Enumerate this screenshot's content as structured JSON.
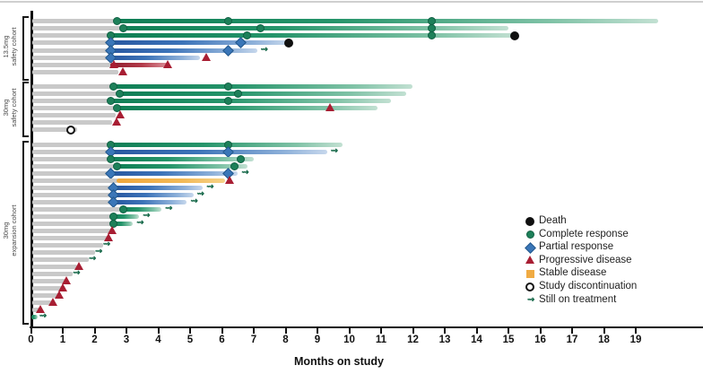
{
  "axis": {
    "label": "Months on study"
  },
  "chart_data": {
    "type": "swimmer",
    "title": "",
    "xlabel": "Months on study",
    "xlim": [
      0,
      19.9
    ],
    "x_ticks": [
      0,
      1,
      2,
      3,
      4,
      5,
      6,
      7,
      8,
      9,
      10,
      11,
      12,
      13,
      14,
      15,
      16,
      17,
      18,
      19
    ],
    "grid": false,
    "legend_position": "right-bottom",
    "legend": [
      {
        "marker": "death",
        "label": "Death"
      },
      {
        "marker": "cr",
        "label": "Complete response"
      },
      {
        "marker": "pr",
        "label": "Partial response"
      },
      {
        "marker": "pd",
        "label": "Progressive disease"
      },
      {
        "marker": "sd",
        "label": "Stable disease"
      },
      {
        "marker": "disc",
        "label": "Study discontinuation"
      },
      {
        "marker": "arrow",
        "label": "Still on treatment"
      }
    ],
    "colors": {
      "green": "#1f8f66",
      "blue": "#3a76b8",
      "red": "#a81e33",
      "orange": "#f0ab43",
      "gray": "#c9c9c9",
      "death": "#101010",
      "marker_green": "#1d8059"
    },
    "cohorts": [
      {
        "name": "13.5mg safety cohort",
        "label_lines": [
          "13.5mg",
          "safety cohort"
        ],
        "patients": [
          {
            "lead": 2.7,
            "bar": {
              "color": "green",
              "start": 2.7,
              "end": 19.7
            },
            "markers": [
              [
                "cr",
                2.7
              ],
              [
                "cr",
                6.2
              ],
              [
                "cr",
                12.6
              ]
            ]
          },
          {
            "lead": 2.9,
            "bar": {
              "color": "green",
              "start": 2.9,
              "end": 15.0
            },
            "markers": [
              [
                "cr",
                2.9
              ],
              [
                "cr",
                7.2
              ],
              [
                "cr",
                12.6
              ]
            ]
          },
          {
            "lead": 2.5,
            "bar": {
              "color": "green",
              "start": 2.5,
              "end": 15.2
            },
            "markers": [
              [
                "cr",
                2.5
              ],
              [
                "cr",
                6.8
              ],
              [
                "cr",
                12.6
              ],
              [
                "death",
                15.2
              ]
            ]
          },
          {
            "lead": 2.5,
            "bar": {
              "color": "blue",
              "start": 2.5,
              "end": 8.1
            },
            "markers": [
              [
                "pr",
                2.5
              ],
              [
                "pr",
                6.6
              ],
              [
                "death",
                8.1
              ]
            ]
          },
          {
            "lead": 2.5,
            "bar": {
              "color": "blue",
              "start": 2.5,
              "end": 7.1
            },
            "markers": [
              [
                "pr",
                2.5
              ],
              [
                "pr",
                6.2
              ],
              [
                "arrow",
                7.3
              ]
            ]
          },
          {
            "lead": 2.5,
            "bar": {
              "color": "blue",
              "start": 2.5,
              "end": 5.3
            },
            "markers": [
              [
                "pr",
                2.5
              ],
              [
                "pd",
                5.5
              ]
            ]
          },
          {
            "lead": 2.5,
            "bar": {
              "color": "red",
              "start": 2.5,
              "end": 4.3
            },
            "markers": [
              [
                "pd",
                2.6
              ],
              [
                "pd",
                4.3
              ]
            ]
          },
          {
            "lead": 2.7,
            "bar": null,
            "markers": [
              [
                "pd",
                2.9
              ]
            ]
          }
        ]
      },
      {
        "name": "30mg safety cohort",
        "label_lines": [
          "30mg",
          "safety cohort"
        ],
        "patients": [
          {
            "lead": 2.6,
            "bar": {
              "color": "green",
              "start": 2.6,
              "end": 12.0
            },
            "markers": [
              [
                "cr",
                2.6
              ],
              [
                "cr",
                6.2
              ]
            ]
          },
          {
            "lead": 2.8,
            "bar": {
              "color": "green",
              "start": 2.8,
              "end": 11.8
            },
            "markers": [
              [
                "cr",
                2.8
              ],
              [
                "cr",
                6.5
              ]
            ]
          },
          {
            "lead": 2.5,
            "bar": {
              "color": "green",
              "start": 2.5,
              "end": 11.3
            },
            "markers": [
              [
                "cr",
                2.5
              ],
              [
                "cr",
                6.2
              ]
            ]
          },
          {
            "lead": 2.7,
            "bar": {
              "color": "green",
              "start": 2.7,
              "end": 10.9
            },
            "markers": [
              [
                "cr",
                2.7
              ],
              [
                "pd",
                9.4
              ]
            ]
          },
          {
            "lead": 2.6,
            "bar": null,
            "markers": [
              [
                "pd",
                2.8
              ]
            ]
          },
          {
            "lead": 2.5,
            "bar": null,
            "markers": [
              [
                "pd",
                2.7
              ]
            ]
          },
          {
            "lead": 1.4,
            "bar": null,
            "markers": [
              [
                "disc",
                1.25
              ]
            ]
          }
        ]
      },
      {
        "name": "30mg expansion cohort",
        "label_lines": [
          "30mg",
          "expansion cohort"
        ],
        "patients": [
          {
            "lead": 2.5,
            "bar": {
              "color": "green",
              "start": 2.5,
              "end": 9.8
            },
            "markers": [
              [
                "cr",
                2.5
              ],
              [
                "cr",
                6.2
              ]
            ]
          },
          {
            "lead": 2.5,
            "bar": {
              "color": "blue",
              "start": 2.5,
              "end": 9.3
            },
            "markers": [
              [
                "pr",
                2.5
              ],
              [
                "pr",
                6.2
              ],
              [
                "arrow",
                9.5
              ]
            ]
          },
          {
            "lead": 2.5,
            "bar": {
              "color": "green",
              "start": 2.5,
              "end": 7.0
            },
            "markers": [
              [
                "cr",
                2.5
              ],
              [
                "cr",
                6.6
              ]
            ]
          },
          {
            "lead": 2.7,
            "bar": {
              "color": "green",
              "start": 2.7,
              "end": 6.8
            },
            "markers": [
              [
                "cr",
                2.7
              ],
              [
                "cr",
                6.4
              ]
            ]
          },
          {
            "lead": 2.5,
            "bar": {
              "color": "blue",
              "start": 2.5,
              "end": 6.5
            },
            "markers": [
              [
                "pr",
                2.5
              ],
              [
                "pr",
                6.2
              ],
              [
                "arrow",
                6.7
              ]
            ]
          },
          {
            "lead": 2.7,
            "bar": {
              "color": "orange",
              "start": 2.7,
              "end": 6.1
            },
            "markers": [
              [
                "pd",
                6.25
              ]
            ]
          },
          {
            "lead": 2.6,
            "bar": {
              "color": "blue",
              "start": 2.6,
              "end": 5.4
            },
            "markers": [
              [
                "pr",
                2.6
              ],
              [
                "arrow",
                5.6
              ]
            ]
          },
          {
            "lead": 2.6,
            "bar": {
              "color": "blue",
              "start": 2.6,
              "end": 5.1
            },
            "markers": [
              [
                "pr",
                2.6
              ],
              [
                "arrow",
                5.3
              ]
            ]
          },
          {
            "lead": 2.6,
            "bar": {
              "color": "blue",
              "start": 2.6,
              "end": 4.9
            },
            "markers": [
              [
                "pr",
                2.6
              ],
              [
                "arrow",
                5.1
              ]
            ]
          },
          {
            "lead": 2.9,
            "bar": {
              "color": "green",
              "start": 2.9,
              "end": 4.1
            },
            "markers": [
              [
                "cr",
                2.9
              ],
              [
                "arrow",
                4.3
              ]
            ]
          },
          {
            "lead": 2.6,
            "bar": {
              "color": "green",
              "start": 2.6,
              "end": 3.4
            },
            "markers": [
              [
                "cr",
                2.6
              ],
              [
                "arrow",
                3.6
              ]
            ]
          },
          {
            "lead": 2.6,
            "bar": {
              "color": "green",
              "start": 2.6,
              "end": 3.2
            },
            "markers": [
              [
                "cr",
                2.6
              ],
              [
                "arrow",
                3.4
              ]
            ]
          },
          {
            "lead": 2.5,
            "bar": null,
            "markers": [
              [
                "pd",
                2.55
              ]
            ]
          },
          {
            "lead": 2.35,
            "bar": null,
            "markers": [
              [
                "pd",
                2.45
              ]
            ]
          },
          {
            "lead": 2.2,
            "bar": null,
            "markers": [
              [
                "arrow",
                2.35
              ]
            ]
          },
          {
            "lead": 1.95,
            "bar": null,
            "markers": [
              [
                "arrow",
                2.1
              ]
            ]
          },
          {
            "lead": 1.75,
            "bar": null,
            "markers": [
              [
                "arrow",
                1.9
              ]
            ]
          },
          {
            "lead": 1.4,
            "bar": null,
            "markers": [
              [
                "pd",
                1.5
              ]
            ]
          },
          {
            "lead": 1.25,
            "bar": null,
            "markers": [
              [
                "arrow",
                1.4
              ]
            ]
          },
          {
            "lead": 1.05,
            "bar": null,
            "markers": [
              [
                "pd",
                1.1
              ]
            ]
          },
          {
            "lead": 0.95,
            "bar": null,
            "markers": [
              [
                "pd",
                1.0
              ]
            ]
          },
          {
            "lead": 0.85,
            "bar": null,
            "markers": [
              [
                "pd",
                0.9
              ]
            ]
          },
          {
            "lead": 0.65,
            "bar": null,
            "markers": [
              [
                "pd",
                0.7
              ]
            ]
          },
          {
            "lead": 0.25,
            "bar": null,
            "markers": [
              [
                "pd",
                0.3
              ]
            ]
          },
          {
            "lead": 0.0,
            "bar": {
              "color": "green",
              "start": 0.0,
              "end": 0.2
            },
            "markers": [
              [
                "arrow",
                0.35
              ]
            ]
          }
        ]
      }
    ]
  }
}
